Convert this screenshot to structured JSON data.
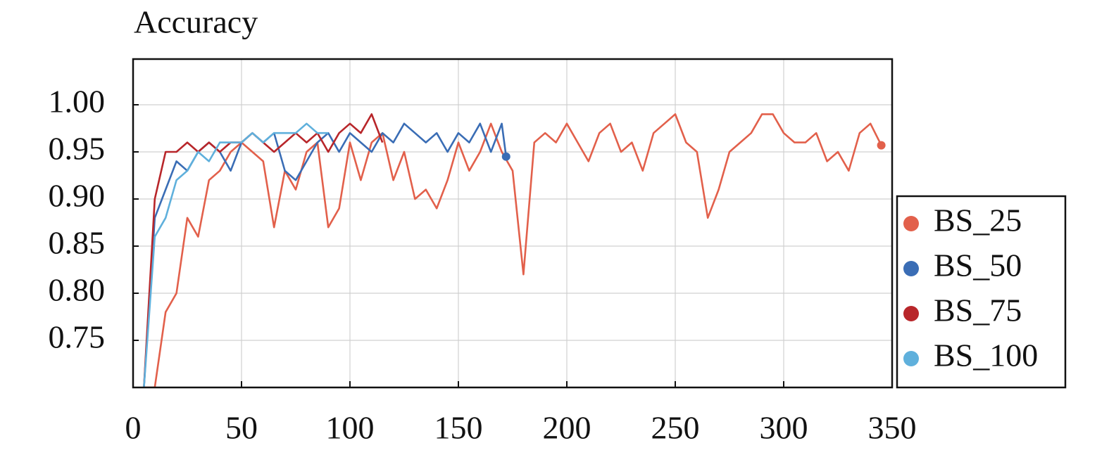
{
  "chart_data": {
    "type": "line",
    "title": "Accuracy",
    "xlim": [
      0,
      350
    ],
    "ylim": [
      0.7,
      1.0485
    ],
    "xticks": [
      0,
      50,
      100,
      150,
      200,
      250,
      300,
      350
    ],
    "yticks": [
      0.75,
      {
        "value": 0.8,
        "label": "0.80"
      },
      0.85,
      {
        "value": 0.9,
        "label": "0.90"
      },
      0.95,
      {
        "value": 1.0,
        "label": "1.00"
      }
    ],
    "grid": true,
    "legend": "right",
    "series": [
      {
        "name": "BS_25",
        "color": "#e2604b",
        "end_marker": true,
        "x": [
          5,
          10,
          15,
          20,
          25,
          30,
          35,
          40,
          45,
          50,
          55,
          60,
          65,
          70,
          75,
          80,
          85,
          90,
          95,
          100,
          105,
          110,
          115,
          120,
          125,
          130,
          135,
          140,
          145,
          150,
          155,
          160,
          165,
          170,
          175,
          180,
          185,
          190,
          195,
          200,
          205,
          210,
          215,
          220,
          225,
          230,
          235,
          240,
          245,
          250,
          255,
          260,
          265,
          270,
          275,
          280,
          285,
          290,
          295,
          300,
          305,
          310,
          315,
          320,
          325,
          330,
          335,
          340,
          345
        ],
        "values": [
          0.7,
          0.7,
          0.78,
          0.8,
          0.88,
          0.86,
          0.92,
          0.93,
          0.95,
          0.96,
          0.95,
          0.94,
          0.87,
          0.93,
          0.91,
          0.95,
          0.96,
          0.87,
          0.89,
          0.96,
          0.92,
          0.96,
          0.97,
          0.92,
          0.95,
          0.9,
          0.91,
          0.89,
          0.92,
          0.96,
          0.93,
          0.95,
          0.98,
          0.95,
          0.93,
          0.82,
          0.96,
          0.97,
          0.96,
          0.98,
          0.96,
          0.94,
          0.97,
          0.98,
          0.95,
          0.96,
          0.93,
          0.97,
          0.98,
          0.99,
          0.96,
          0.95,
          0.88,
          0.91,
          0.95,
          0.96,
          0.97,
          0.99,
          0.99,
          0.97,
          0.96,
          0.96,
          0.97,
          0.94,
          0.95,
          0.93,
          0.97,
          0.98,
          0.957
        ]
      },
      {
        "name": "BS_50",
        "color": "#3a6db5",
        "end_marker": true,
        "x": [
          5,
          10,
          15,
          20,
          25,
          30,
          35,
          40,
          45,
          50,
          55,
          60,
          65,
          70,
          75,
          80,
          85,
          90,
          95,
          100,
          105,
          110,
          115,
          120,
          125,
          130,
          135,
          140,
          145,
          150,
          155,
          160,
          165,
          170,
          172
        ],
        "values": [
          0.7,
          0.88,
          0.91,
          0.94,
          0.93,
          0.95,
          0.96,
          0.95,
          0.93,
          0.96,
          0.97,
          0.96,
          0.97,
          0.93,
          0.92,
          0.94,
          0.96,
          0.97,
          0.95,
          0.97,
          0.96,
          0.95,
          0.97,
          0.96,
          0.98,
          0.97,
          0.96,
          0.97,
          0.95,
          0.97,
          0.96,
          0.98,
          0.95,
          0.98,
          0.945
        ]
      },
      {
        "name": "BS_75",
        "color": "#b8262a",
        "end_marker": false,
        "x": [
          5,
          10,
          15,
          20,
          25,
          30,
          35,
          40,
          45,
          50,
          55,
          60,
          65,
          70,
          75,
          80,
          85,
          90,
          95,
          100,
          105,
          110,
          115
        ],
        "values": [
          0.7,
          0.9,
          0.95,
          0.95,
          0.96,
          0.95,
          0.96,
          0.95,
          0.96,
          0.96,
          0.97,
          0.96,
          0.95,
          0.96,
          0.97,
          0.96,
          0.97,
          0.95,
          0.97,
          0.98,
          0.97,
          0.99,
          0.96
        ]
      },
      {
        "name": "BS_100",
        "color": "#5fb0dc",
        "end_marker": false,
        "x": [
          5,
          10,
          15,
          20,
          25,
          30,
          35,
          40,
          45,
          50,
          55,
          60,
          65,
          70,
          75,
          80,
          85,
          90
        ],
        "values": [
          0.7,
          0.86,
          0.88,
          0.92,
          0.93,
          0.95,
          0.94,
          0.96,
          0.96,
          0.96,
          0.97,
          0.96,
          0.97,
          0.97,
          0.97,
          0.98,
          0.97,
          0.97
        ]
      }
    ]
  }
}
